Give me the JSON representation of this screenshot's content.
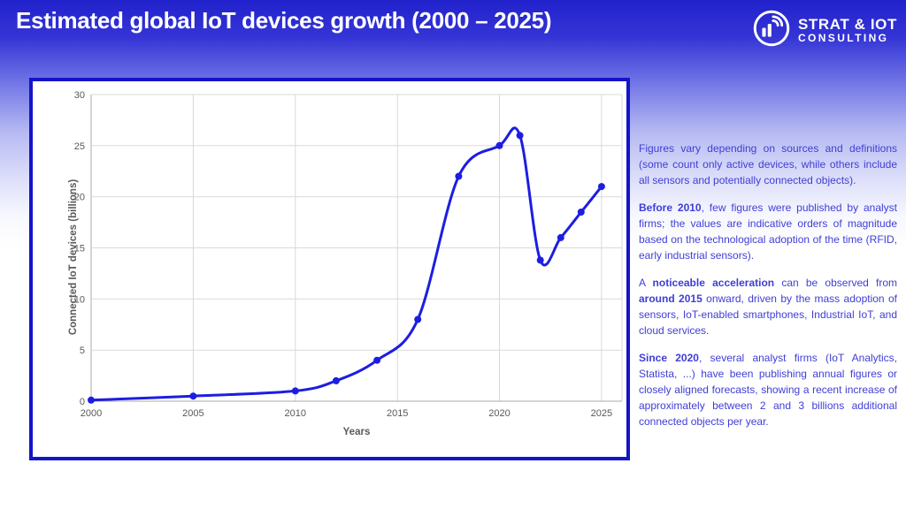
{
  "slide": {
    "title": "Estimated global IoT devices growth (2000 – 2025)"
  },
  "logo": {
    "name": "STRAT & IOT",
    "subtitle": "CONSULTING",
    "icon": "signal-bars-wifi-circle-icon"
  },
  "chart_data": {
    "type": "line",
    "title": "",
    "xlabel": "Years",
    "ylabel": "Connected IoT devices (billions)",
    "x": [
      2000,
      2005,
      2010,
      2012,
      2014,
      2016,
      2018,
      2020,
      2021,
      2022,
      2023,
      2024,
      2025
    ],
    "y": [
      0.1,
      0.5,
      1,
      2,
      4,
      8,
      22,
      25,
      26,
      13.8,
      16,
      18.5,
      21
    ],
    "series_name": "Connected IoT devices (billions)",
    "xlim": [
      2000,
      2026
    ],
    "ylim": [
      0,
      30
    ],
    "x_ticks": [
      2000,
      2005,
      2010,
      2015,
      2020,
      2025
    ],
    "y_ticks": [
      0,
      5,
      10,
      15,
      20,
      25,
      30
    ],
    "grid": true,
    "legend": "none",
    "line_color": "#1d1de2",
    "marker": "circle",
    "smooth": true
  },
  "notes": {
    "text_color": "#3e3ed6",
    "paragraphs": [
      {
        "runs": [
          {
            "t": "Figures vary depending on sources and definitions (some count only active devices, while others include all sensors and potentially connected objects).",
            "b": false
          }
        ]
      },
      {
        "runs": [
          {
            "t": "Before 2010",
            "b": true
          },
          {
            "t": ", few figures were published by analyst firms; the values are indicative orders of magnitude based on the technological adoption of the time (RFID, early industrial sensors).",
            "b": false
          }
        ]
      },
      {
        "runs": [
          {
            "t": "A ",
            "b": false
          },
          {
            "t": "noticeable acceleration",
            "b": true
          },
          {
            "t": " can be observed from ",
            "b": false
          },
          {
            "t": "around 2015",
            "b": true
          },
          {
            "t": " onward, driven by the mass adoption of sensors, IoT-enabled smartphones, Industrial IoT, and cloud services.",
            "b": false
          }
        ]
      },
      {
        "runs": [
          {
            "t": "Since 2020",
            "b": true
          },
          {
            "t": ", several analyst firms (IoT Analytics, Statista, ...) have been publishing annual figures or closely aligned forecasts, showing a recent increase of approximately between 2 and 3 billions additional connected objects per year.",
            "b": false
          }
        ]
      }
    ]
  }
}
